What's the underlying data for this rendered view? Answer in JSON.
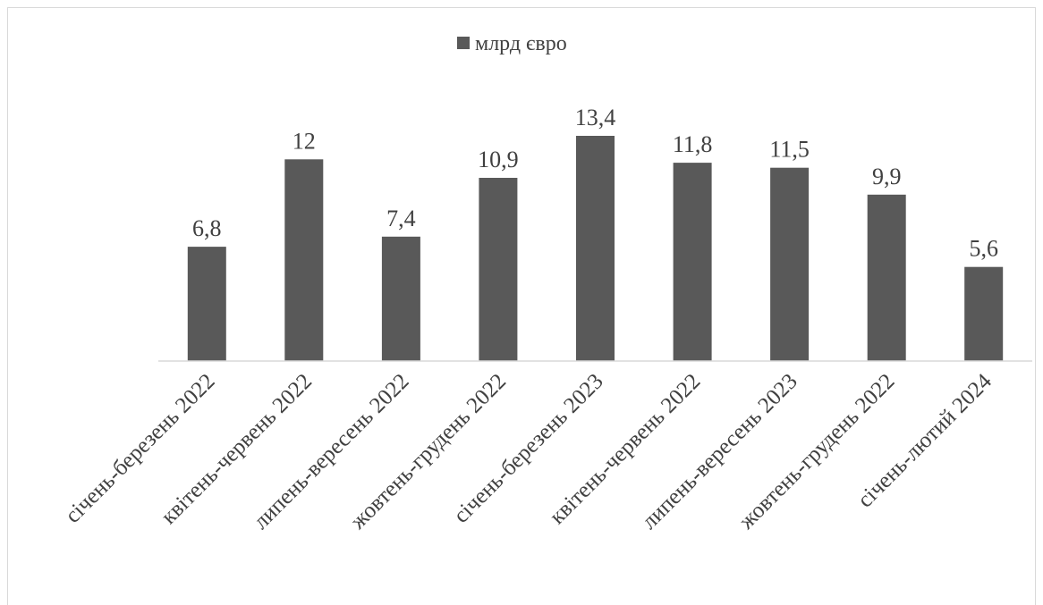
{
  "chart_data": {
    "type": "bar",
    "categories": [
      "січень-березень 2022",
      "квітень-червень 2022",
      "липень-вересень 2022",
      "жовтень-грудень 2022",
      "січень-березень 2023",
      "квітень-червень 2022",
      "липень-вересень 2023",
      "жовтень-грудень 2022",
      "січень-лютий 2024"
    ],
    "series": [
      {
        "name": "млрд євро",
        "values": [
          6.8,
          12,
          7.4,
          10.9,
          13.4,
          11.8,
          11.5,
          9.9,
          5.6
        ],
        "labels": [
          "6,8",
          "12",
          "7,4",
          "10,9",
          "13,4",
          "11,8",
          "11,5",
          "9,9",
          "5,6"
        ]
      }
    ],
    "ylim": [
      0,
      13.4
    ],
    "grid": false,
    "legend": "top",
    "colors": {
      "bar": "#595959",
      "axis": "#d9d9d9",
      "text": "#404040"
    }
  }
}
